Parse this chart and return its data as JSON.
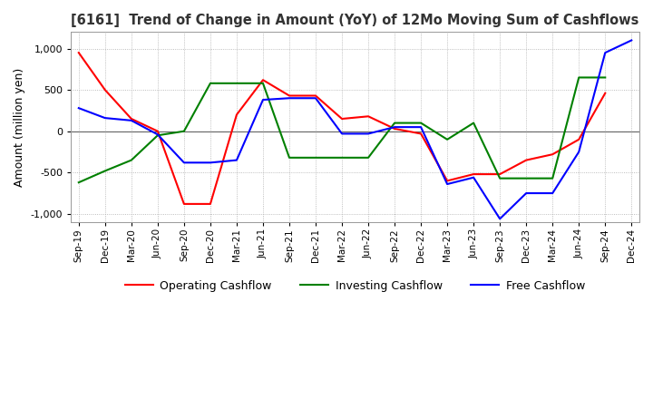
{
  "title": "[6161]  Trend of Change in Amount (YoY) of 12Mo Moving Sum of Cashflows",
  "ylabel": "Amount (million yen)",
  "ylim": [
    -1100,
    1200
  ],
  "yticks": [
    -1000,
    -500,
    0,
    500,
    1000
  ],
  "x_labels": [
    "Sep-19",
    "Dec-19",
    "Mar-20",
    "Jun-20",
    "Sep-20",
    "Dec-20",
    "Mar-21",
    "Jun-21",
    "Sep-21",
    "Dec-21",
    "Mar-22",
    "Jun-22",
    "Sep-22",
    "Dec-22",
    "Mar-23",
    "Jun-23",
    "Sep-23",
    "Dec-23",
    "Mar-24",
    "Jun-24",
    "Sep-24",
    "Dec-24"
  ],
  "operating": [
    950,
    500,
    150,
    0,
    -880,
    -880,
    200,
    620,
    430,
    430,
    150,
    180,
    30,
    -30,
    -600,
    -520,
    -520,
    -350,
    -280,
    -100,
    460,
    null
  ],
  "investing": [
    -620,
    -480,
    -350,
    -50,
    0,
    580,
    580,
    580,
    -320,
    -320,
    -320,
    -320,
    100,
    100,
    -100,
    100,
    -570,
    -570,
    -570,
    650,
    650,
    null
  ],
  "free": [
    280,
    160,
    130,
    -40,
    -380,
    -380,
    -350,
    380,
    400,
    400,
    -30,
    -30,
    50,
    50,
    -640,
    -560,
    -1060,
    -750,
    -750,
    -250,
    950,
    1100
  ],
  "colors": {
    "operating": "#FF0000",
    "investing": "#008000",
    "free": "#0000FF"
  },
  "legend_labels": [
    "Operating Cashflow",
    "Investing Cashflow",
    "Free Cashflow"
  ],
  "background_color": "#FFFFFF",
  "grid_color": "#AAAAAA"
}
